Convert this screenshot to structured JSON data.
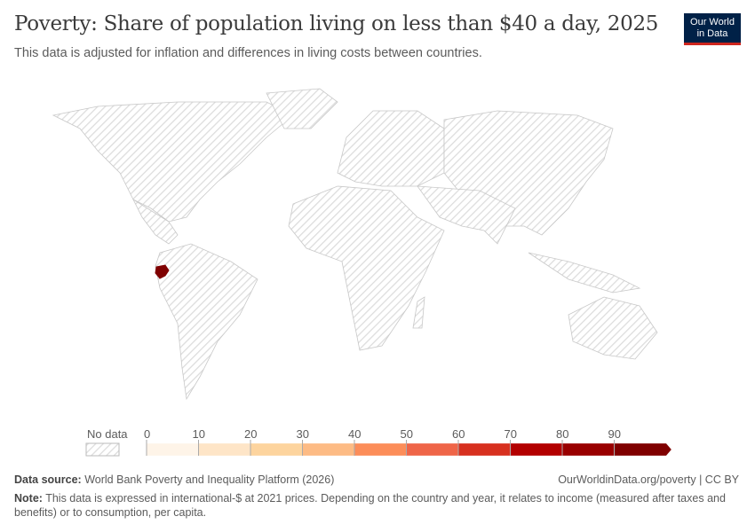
{
  "title": "Poverty: Share of population living on less than $40 a day, 2025",
  "subtitle": "This data is adjusted for inflation and differences in living costs between countries.",
  "logo": {
    "line1": "Our World",
    "line2": "in Data"
  },
  "legend": {
    "no_data_label": "No data",
    "ticks": [
      "0",
      "10",
      "20",
      "30",
      "40",
      "50",
      "60",
      "70",
      "80",
      "90"
    ],
    "colors": [
      "#fef4e8",
      "#fee5c7",
      "#fdd49e",
      "#fdbb84",
      "#fc8d59",
      "#ef6548",
      "#d7301f",
      "#b30000",
      "#990000",
      "#7f0000"
    ]
  },
  "map_data": {
    "type": "choropleth",
    "unit": "%",
    "countries": [
      {
        "name": "Ecuador",
        "value_bracket": "90+",
        "color": "#7f0000"
      }
    ],
    "others": "No data"
  },
  "footer": {
    "source_label": "Data source:",
    "source": "World Bank Poverty and Inequality Platform (2026)",
    "url": "OurWorldinData.org/poverty | CC BY",
    "note_label": "Note:",
    "note": "This data is expressed in international-$ at 2021 prices. Depending on the country and year, it relates to income (measured after taxes and benefits) or to consumption, per capita."
  }
}
